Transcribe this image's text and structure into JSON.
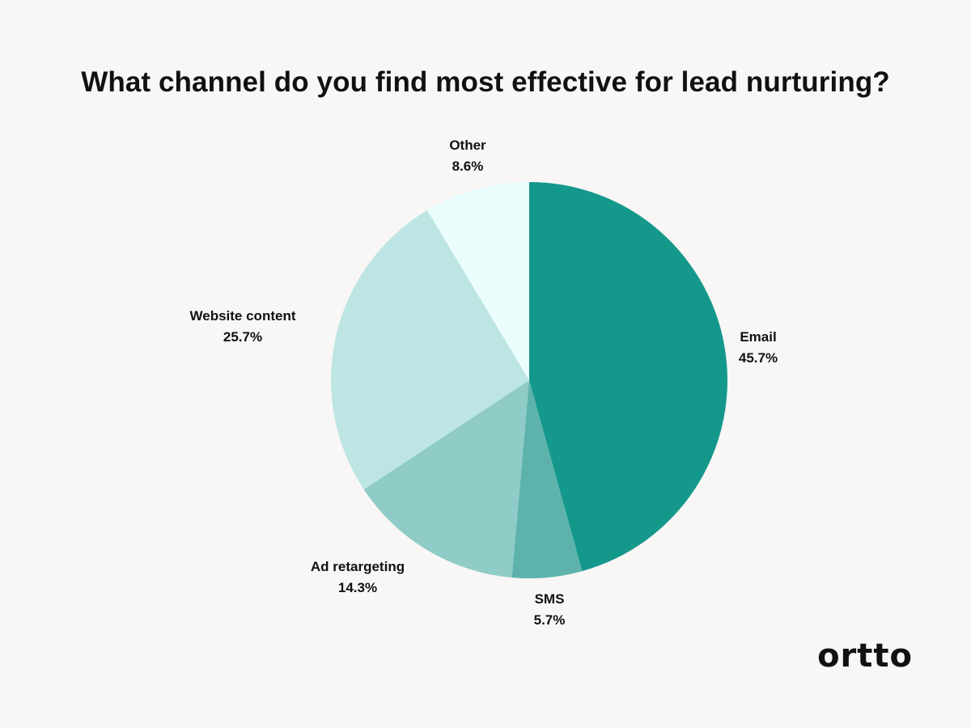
{
  "chart_data": {
    "type": "pie",
    "title": "What channel do you find most effective for lead nurturing?",
    "slices": [
      {
        "label": "Email",
        "value": 45.7,
        "display": "45.7%",
        "color": "#15988c"
      },
      {
        "label": "SMS",
        "value": 5.7,
        "display": "5.7%",
        "color": "#5db3ac"
      },
      {
        "label": "Ad retargeting",
        "value": 14.3,
        "display": "14.3%",
        "color": "#8fcbc7"
      },
      {
        "label": "Website content",
        "value": 25.7,
        "display": "25.7%",
        "color": "#bde5e4"
      },
      {
        "label": "Other",
        "value": 8.6,
        "display": "8.6%",
        "color": "#ebfefe"
      }
    ],
    "start": "top",
    "direction": "clockwise"
  },
  "brand": {
    "logo_text": "ortto"
  }
}
